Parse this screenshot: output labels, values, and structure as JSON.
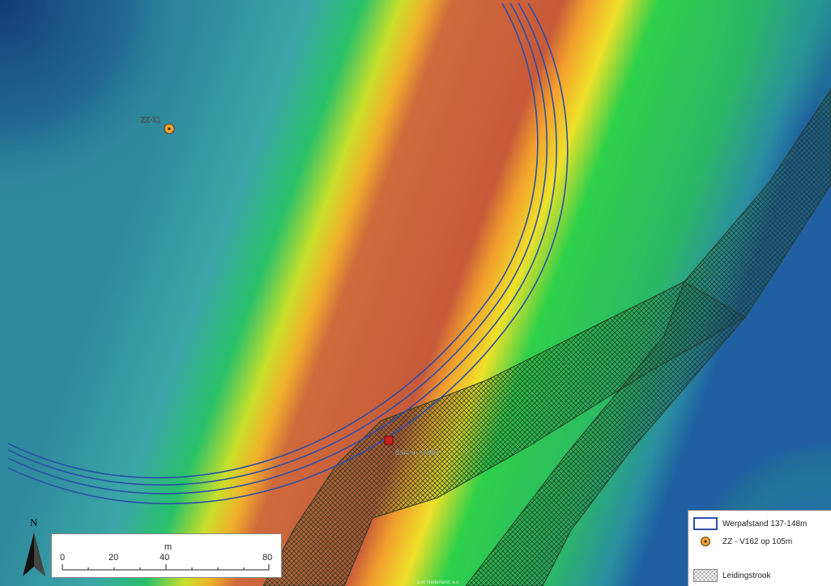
{
  "map": {
    "point_labels": {
      "zz01": "ZZ-01",
      "elevation": "8,64 m +NAP"
    },
    "footer_text": "Esri Nederland, a.o."
  },
  "scalebar": {
    "unit": "m",
    "ticks": [
      "0",
      "20",
      "40",
      "80"
    ]
  },
  "north_arrow": {
    "label": "N"
  },
  "legend": {
    "items": [
      {
        "label": "Werpafstand 137-148m",
        "swatch": "outline-blue-icon"
      },
      {
        "label": "ZZ - V162 op 105m",
        "swatch": "orange-dot-icon"
      },
      {
        "label": "Leidingstrook",
        "swatch": "crosshatch-icon"
      }
    ]
  },
  "colors": {
    "deep_blue": "#1b4f8c",
    "teal": "#3a93a5",
    "green": "#2dbf55",
    "yellow": "#f2e32a",
    "orange": "#f39a2d",
    "red_core": "#c85a3b",
    "arc_line": "#2b4fa8",
    "marker_red": "#d11e1e",
    "marker_orange": "#f2a233"
  }
}
